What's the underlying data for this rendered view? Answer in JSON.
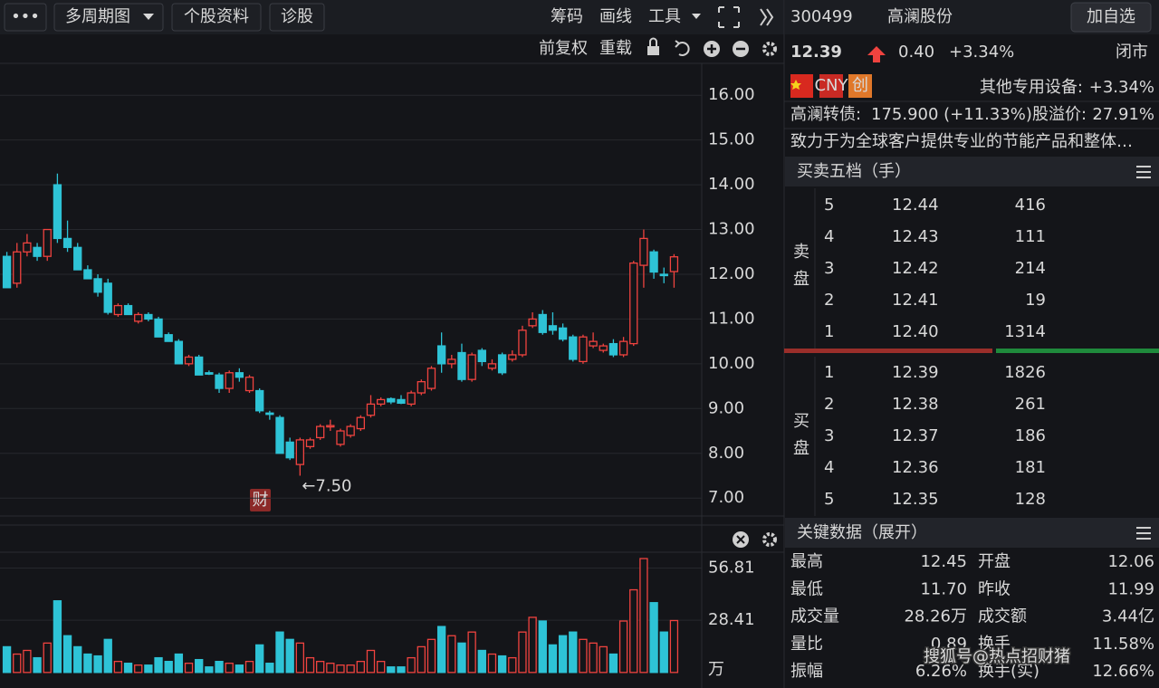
{
  "toolbar": {
    "menu": "•••",
    "period": "多周期图",
    "profile": "个股资料",
    "diagnose": "诊股",
    "tools": [
      "筹码",
      "画线",
      "工具"
    ],
    "adjust": "前复权",
    "reload": "重载"
  },
  "quote": {
    "code": "300499",
    "name": "高澜股份",
    "watch_button": "加自选",
    "price": "12.39",
    "change": "0.40",
    "change_pct": "+3.34%",
    "status": "闭市",
    "badges": [
      "CNY",
      "创"
    ],
    "industry": "其他专用设备:",
    "industry_change": "+3.34%",
    "bond": "高澜转债:",
    "bond_price": "175.900 (+11.33%)",
    "premium_label": "股溢价:",
    "premium": "27.91%",
    "description": "致力于为全球客户提供专业的节能产品和整体…"
  },
  "order_book": {
    "title": "买卖五档（手）",
    "sell_label": "卖盘",
    "buy_label": "买盘",
    "price_color": "#f0433f",
    "volume_color": "#2ec3d6",
    "sell": [
      {
        "level": "5",
        "price": "12.44",
        "volume": "416"
      },
      {
        "level": "4",
        "price": "12.43",
        "volume": "111"
      },
      {
        "level": "3",
        "price": "12.42",
        "volume": "214"
      },
      {
        "level": "2",
        "price": "12.41",
        "volume": "19"
      },
      {
        "level": "1",
        "price": "12.40",
        "volume": "1314"
      }
    ],
    "buy": [
      {
        "level": "1",
        "price": "12.39",
        "volume": "1826"
      },
      {
        "level": "2",
        "price": "12.38",
        "volume": "261"
      },
      {
        "level": "3",
        "price": "12.37",
        "volume": "186"
      },
      {
        "level": "4",
        "price": "12.36",
        "volume": "181"
      },
      {
        "level": "5",
        "price": "12.35",
        "volume": "128"
      }
    ]
  },
  "key_data": {
    "title": "关键数据（展开）",
    "items": [
      {
        "label": "最高",
        "value": "12.45",
        "color": "#f0433f"
      },
      {
        "label": "开盘",
        "value": "12.06",
        "color": "#f0433f"
      },
      {
        "label": "最低",
        "value": "11.70",
        "color": "#2fc26b"
      },
      {
        "label": "昨收",
        "value": "11.99",
        "color": "#e8e8e8"
      },
      {
        "label": "成交量",
        "value": "28.26万",
        "color": "#2ec3d6"
      },
      {
        "label": "成交额",
        "value": "3.44亿",
        "color": "#2ec3d6"
      },
      {
        "label": "量比",
        "value": "0.89",
        "color": "#2ec3d6"
      },
      {
        "label": "换手",
        "value": "11.58%",
        "color": "#2ec3d6"
      },
      {
        "label": "振幅",
        "value": "6.26%",
        "color": "#2ec3d6"
      },
      {
        "label": "换手(实)",
        "value": "12.66%",
        "color": "#2ec3d6"
      }
    ]
  },
  "watermark": "搜狐号@热点招财猪",
  "chart_data": [
    {
      "type": "candlestick",
      "up_color": "#f0433f",
      "down_color": "#2ec3d6",
      "grid": true,
      "open": [
        12.4,
        11.8,
        12.5,
        12.6,
        12.4,
        14.0,
        12.8,
        12.6,
        12.1,
        11.9,
        11.8,
        11.1,
        11.3,
        10.95,
        11.1,
        11.0,
        10.65,
        10.5,
        10.0,
        10.15,
        9.8,
        9.75,
        9.45,
        9.8,
        9.4,
        9.4,
        8.9,
        8.8,
        8.25,
        7.75,
        8.15,
        8.35,
        8.6,
        8.2,
        8.4,
        8.55,
        8.85,
        9.1,
        9.22,
        9.2,
        9.1,
        9.35,
        9.45,
        10.4,
        10.0,
        10.25,
        9.65,
        10.3,
        9.9,
        10.2,
        10.1,
        10.2,
        10.85,
        11.1,
        10.85,
        10.8,
        10.6,
        10.05,
        10.4,
        10.3,
        10.45,
        10.2,
        10.45,
        12.2,
        12.5,
        12.0,
        12.06
      ],
      "high": [
        12.5,
        12.7,
        12.9,
        12.7,
        13.0,
        14.25,
        13.2,
        12.7,
        12.2,
        12.0,
        11.9,
        11.35,
        11.35,
        11.15,
        11.15,
        11.05,
        10.7,
        10.55,
        10.2,
        10.2,
        9.85,
        9.8,
        9.85,
        9.9,
        9.75,
        9.45,
        8.95,
        8.85,
        8.35,
        8.35,
        8.35,
        8.65,
        8.75,
        8.55,
        8.65,
        8.85,
        9.3,
        9.25,
        9.25,
        9.3,
        9.4,
        9.65,
        9.95,
        10.7,
        10.2,
        10.45,
        10.25,
        10.35,
        10.1,
        10.25,
        10.3,
        10.85,
        11.15,
        11.2,
        11.15,
        10.9,
        10.65,
        10.65,
        10.7,
        10.45,
        10.55,
        10.6,
        12.3,
        13.0,
        12.55,
        12.15,
        12.45
      ],
      "low": [
        11.7,
        11.7,
        12.4,
        12.3,
        12.3,
        12.7,
        12.5,
        12.1,
        11.9,
        11.5,
        11.1,
        11.05,
        11.1,
        10.9,
        10.95,
        10.6,
        10.5,
        10.0,
        9.95,
        9.75,
        9.75,
        9.35,
        9.35,
        9.6,
        9.35,
        8.9,
        8.75,
        8.0,
        7.85,
        7.5,
        8.1,
        8.3,
        8.5,
        8.15,
        8.35,
        8.5,
        8.8,
        9.05,
        9.1,
        9.1,
        9.05,
        9.3,
        9.4,
        9.8,
        9.9,
        9.6,
        9.6,
        9.95,
        9.85,
        9.75,
        10.05,
        10.15,
        10.8,
        10.65,
        10.65,
        10.5,
        10.05,
        10.0,
        10.35,
        10.25,
        10.15,
        10.15,
        10.4,
        11.7,
        11.9,
        11.8,
        11.7
      ],
      "close": [
        11.7,
        12.5,
        12.7,
        12.4,
        13.0,
        12.8,
        12.6,
        12.1,
        11.9,
        11.6,
        11.15,
        11.3,
        11.1,
        11.1,
        11.0,
        10.6,
        10.5,
        10.0,
        10.15,
        9.75,
        9.78,
        9.45,
        9.8,
        9.7,
        9.7,
        8.95,
        8.88,
        8.0,
        7.9,
        8.3,
        8.3,
        8.6,
        8.62,
        8.5,
        8.6,
        8.8,
        9.1,
        9.2,
        9.15,
        9.12,
        9.35,
        9.6,
        9.9,
        10.0,
        10.1,
        9.65,
        10.2,
        10.05,
        10.0,
        9.8,
        10.2,
        10.75,
        11.0,
        10.7,
        10.75,
        10.55,
        10.1,
        10.6,
        10.5,
        10.4,
        10.2,
        10.5,
        12.25,
        12.8,
        12.05,
        11.99,
        12.39
      ],
      "ylim": [
        6.64,
        16.55
      ],
      "yticks": [
        {
          "value": 16,
          "label": "16.00"
        },
        {
          "value": 15,
          "label": "15.00"
        },
        {
          "value": 14,
          "label": "14.00"
        },
        {
          "value": 13,
          "label": "13.00"
        },
        {
          "value": 12,
          "label": "12.00"
        },
        {
          "value": 11,
          "label": "11.00"
        },
        {
          "value": 10,
          "label": "10.00"
        },
        {
          "value": 9,
          "label": "9.00"
        },
        {
          "value": 8,
          "label": "8.00"
        },
        {
          "value": 7,
          "label": "7.00"
        }
      ],
      "low_label": "←7.50",
      "event_badge": "财"
    },
    {
      "type": "bar",
      "unit_label": "万",
      "values": [
        14,
        10,
        12,
        8,
        16,
        39,
        20,
        14,
        10,
        9,
        18,
        6,
        5,
        4,
        4,
        8,
        6,
        10,
        5,
        7,
        3,
        6,
        5,
        4,
        6,
        15,
        5,
        22,
        18,
        16,
        8,
        6,
        5,
        4,
        4,
        6,
        12,
        6,
        3,
        3,
        8,
        14,
        18,
        25,
        20,
        16,
        22,
        12,
        10,
        9,
        8,
        22,
        30,
        28,
        15,
        20,
        22,
        18,
        16,
        14,
        10,
        28,
        45,
        62,
        38,
        22,
        28.26
      ],
      "ylim": [
        -6,
        63
      ],
      "yticks": [
        28.41,
        56.81
      ]
    }
  ]
}
